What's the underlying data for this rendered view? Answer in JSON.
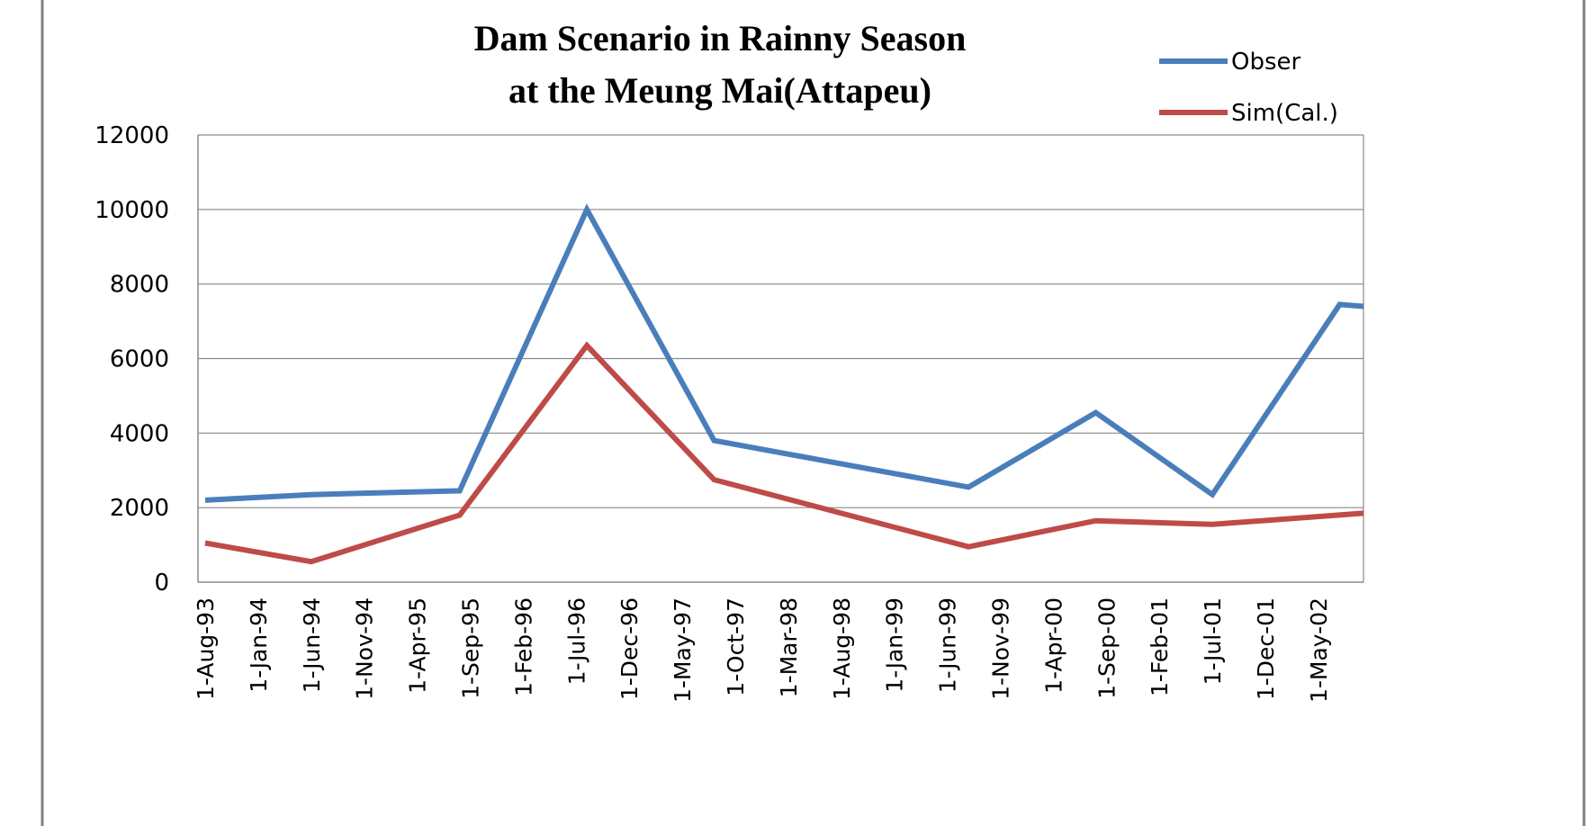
{
  "chart_data": {
    "type": "line",
    "title_line1": "Dam Scenario in Rainny Season",
    "title_line2": "at the Meung Mai(Attapeu)",
    "xlabel": "",
    "ylabel": "",
    "ylim": [
      0,
      12000
    ],
    "yticks": [
      "0",
      "2000",
      "4000",
      "6000",
      "8000",
      "10000",
      "12000"
    ],
    "x_tick_labels": [
      "1-Aug-93",
      "1-Jan-94",
      "1-Jun-94",
      "1-Nov-94",
      "1-Apr-95",
      "1-Sep-95",
      "1-Feb-96",
      "1-Jul-96",
      "1-Dec-96",
      "1-May-97",
      "1-Oct-97",
      "1-Mar-98",
      "1-Aug-98",
      "1-Jan-99",
      "1-Jun-99",
      "1-Nov-99",
      "1-Apr-00",
      "1-Sep-00",
      "1-Feb-01",
      "1-Jul-01",
      "1-Dec-01",
      "1-May-02"
    ],
    "series": [
      {
        "name": "Obser",
        "color": "#4a7ebb",
        "points": [
          {
            "x": "1-Aug-93",
            "y": 2200
          },
          {
            "x": "1-Jun-94",
            "y": 2350
          },
          {
            "x": "1-Aug-95",
            "y": 2450
          },
          {
            "x": "1-Aug-96",
            "y": 10000
          },
          {
            "x": "1-Aug-97",
            "y": 3800
          },
          {
            "x": "1-Aug-99",
            "y": 2550
          },
          {
            "x": "1-Aug-00",
            "y": 4550
          },
          {
            "x": "1-Jul-01",
            "y": 2350
          },
          {
            "x": "1-Jul-02",
            "y": 7450
          },
          {
            "x": "end",
            "y": 7400
          }
        ]
      },
      {
        "name": "Sim(Cal.)",
        "color": "#be4b48",
        "points": [
          {
            "x": "1-Aug-93",
            "y": 1050
          },
          {
            "x": "1-Jun-94",
            "y": 550
          },
          {
            "x": "1-Aug-95",
            "y": 1800
          },
          {
            "x": "1-Aug-96",
            "y": 6350
          },
          {
            "x": "1-Aug-97",
            "y": 2750
          },
          {
            "x": "1-Aug-99",
            "y": 950
          },
          {
            "x": "1-Aug-00",
            "y": 1650
          },
          {
            "x": "1-Jul-01",
            "y": 1550
          },
          {
            "x": "end",
            "y": 1850
          }
        ]
      }
    ]
  }
}
